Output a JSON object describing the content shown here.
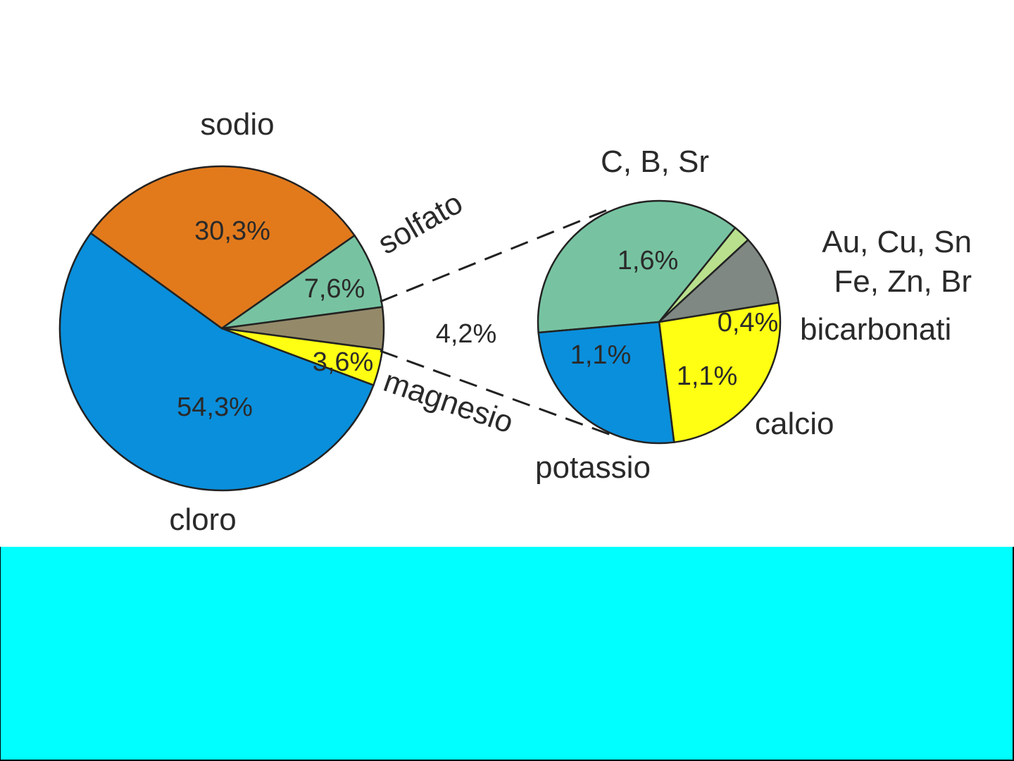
{
  "colors": {
    "background": "#ffffff",
    "footer": "#00ffff",
    "frame": "#000000",
    "outline": "#222222",
    "label": "#2a2a2a"
  },
  "chart_data": [
    {
      "type": "pie",
      "series_unit": "%",
      "slices": [
        {
          "name": "cloro",
          "value": 54.3,
          "value_label": "54,3%",
          "color": "#0a8fdc"
        },
        {
          "name": "sodio",
          "value": 30.3,
          "value_label": "30,3%",
          "color": "#e27a1c"
        },
        {
          "name": "solfato",
          "value": 7.6,
          "value_label": "7,6%",
          "color": "#77c3a1"
        },
        {
          "name": "",
          "value": 4.2,
          "value_label": "4,2%",
          "color": "#948a6a",
          "exploded": true
        },
        {
          "name": "magnesio",
          "value": 3.6,
          "value_label": "3,6%",
          "color": "#ffff14"
        }
      ]
    },
    {
      "type": "pie",
      "series_unit": "%",
      "total_label": "4,2%",
      "slices": [
        {
          "name": "C, B, Sr",
          "value": 1.6,
          "value_label": "1,6%",
          "color": "#77c3a1"
        },
        {
          "name": "Au, Cu, Sn Fe, Zn, Br",
          "value": 0.1,
          "value_label": "",
          "color": "#b9e08d"
        },
        {
          "name": "bicarbonati",
          "value": 0.4,
          "value_label": "0,4%",
          "color": "#7f8882"
        },
        {
          "name": "calcio",
          "value": 1.1,
          "value_label": "1,1%",
          "color": "#ffff14"
        },
        {
          "name": "potassio",
          "value": 1.1,
          "value_label": "1,1%",
          "color": "#0a8fdc"
        }
      ],
      "multiline_labels": {
        "trace_elements": [
          "Au, Cu, Sn",
          "Fe, Zn, Br"
        ]
      }
    }
  ]
}
